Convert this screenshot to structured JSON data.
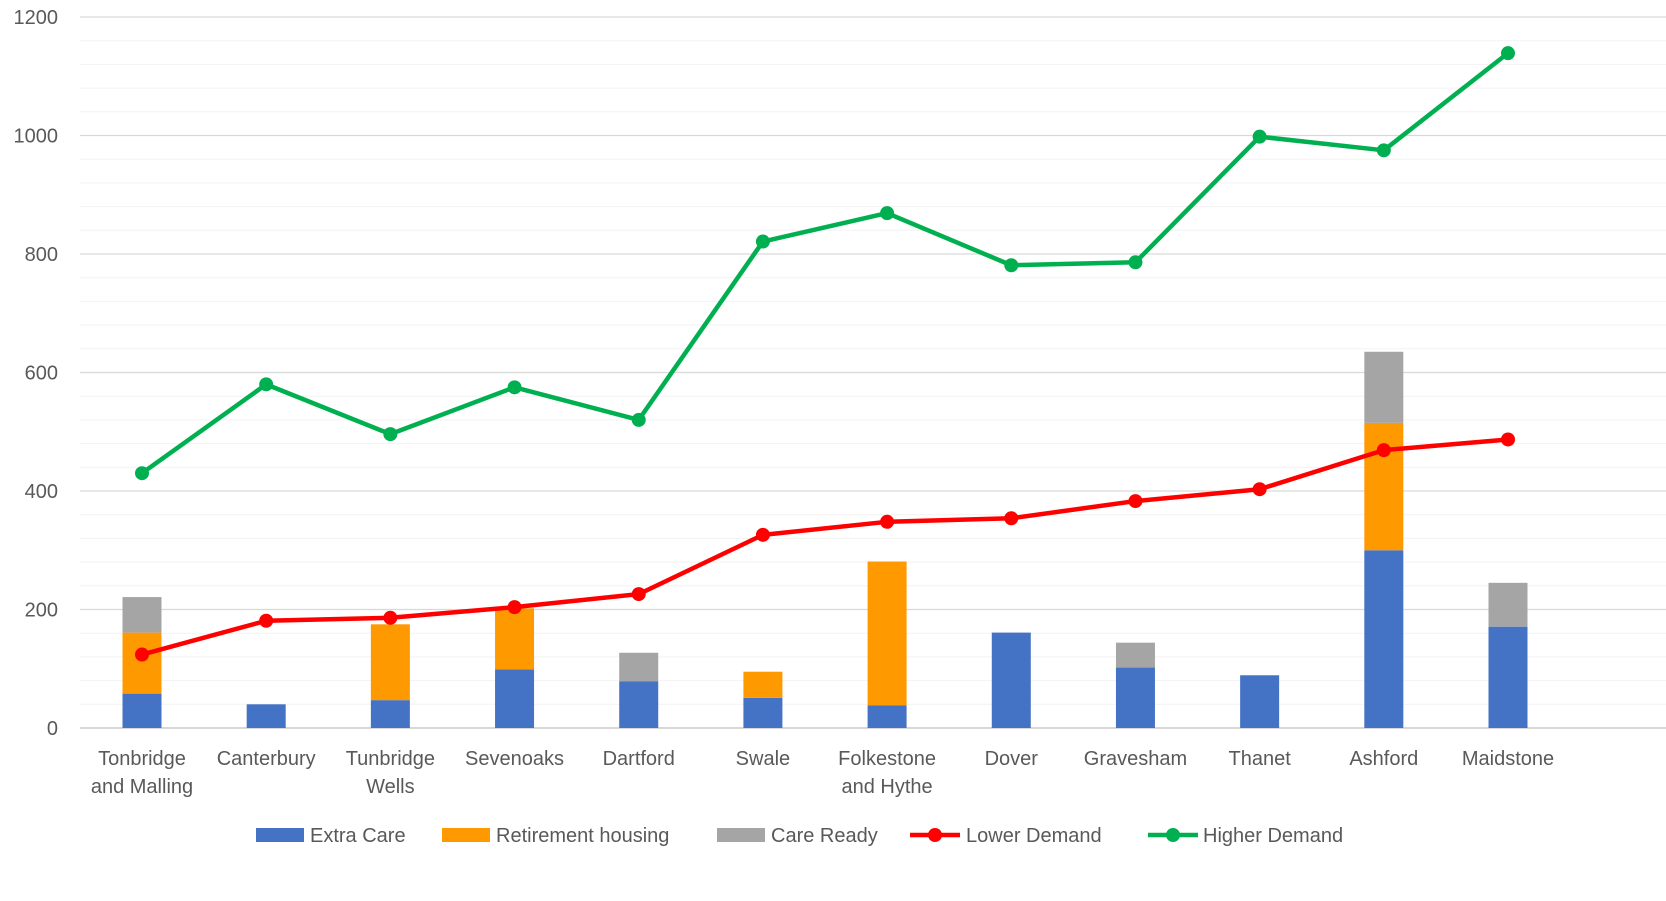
{
  "chart_data": {
    "type": "bar",
    "stacked": true,
    "categories": [
      [
        "Tonbridge",
        "and Malling"
      ],
      [
        "Canterbury"
      ],
      [
        "Tunbridge",
        "Wells"
      ],
      [
        "Sevenoaks"
      ],
      [
        "Dartford"
      ],
      [
        "Swale"
      ],
      [
        "Folkestone",
        "and Hythe"
      ],
      [
        "Dover"
      ],
      [
        "Gravesham"
      ],
      [
        "Thanet"
      ],
      [
        "Ashford"
      ],
      [
        "Maidstone"
      ]
    ],
    "ylim": [
      0,
      1200
    ],
    "yticks": [
      0,
      200,
      400,
      600,
      800,
      1000,
      1200
    ],
    "ytick_labels": [
      "0",
      "200",
      "400",
      "600",
      "800",
      "1000",
      "1200"
    ],
    "minor_step": 40,
    "grid": true,
    "legend_position": "bottom",
    "bar_series": [
      {
        "name": "Extra Care",
        "color": "#4472C4",
        "values": [
          58,
          40,
          47,
          99,
          79,
          51,
          38,
          161,
          102,
          89,
          300,
          171
        ]
      },
      {
        "name": "Retirement housing",
        "color": "#FF9900",
        "values": [
          103,
          0,
          128,
          103,
          0,
          44,
          243,
          0,
          0,
          0,
          215,
          0
        ]
      },
      {
        "name": "Care Ready",
        "color": "#A5A5A5",
        "values": [
          60,
          0,
          0,
          0,
          48,
          0,
          0,
          0,
          42,
          0,
          120,
          74
        ]
      }
    ],
    "line_series": [
      {
        "name": "Lower Demand",
        "color": "#FF0000",
        "values": [
          124,
          181,
          186,
          204,
          226,
          326,
          348,
          354,
          383,
          403,
          469,
          487
        ]
      },
      {
        "name": "Higher Demand",
        "color": "#00B050",
        "values": [
          430,
          580,
          496,
          575,
          520,
          821,
          869,
          781,
          786,
          998,
          975,
          1139
        ]
      }
    ]
  }
}
